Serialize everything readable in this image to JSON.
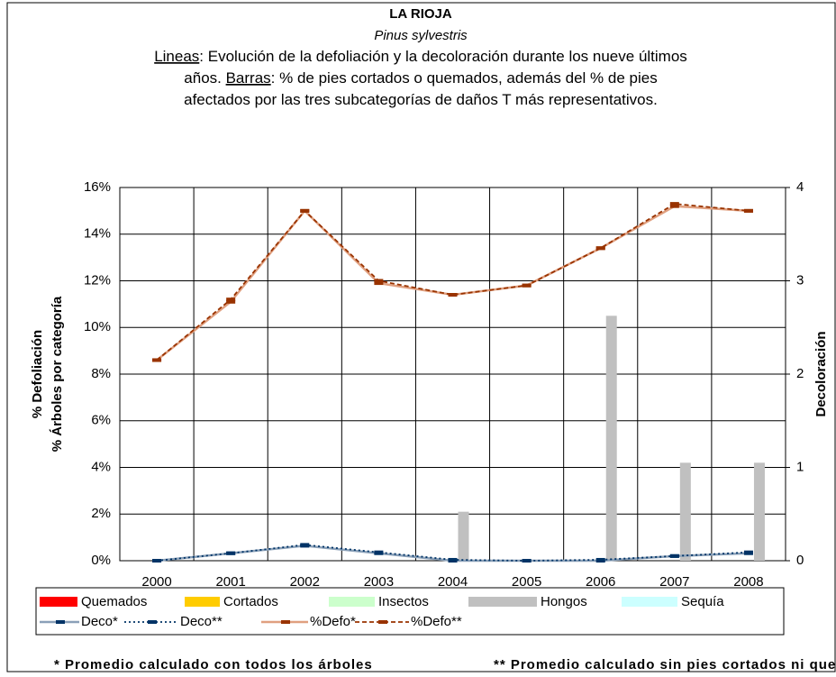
{
  "chart_data": {
    "type": "bar_line",
    "title": "LA RIOJA",
    "subtitle_italic": "Pinus sylvestris",
    "description": [
      [
        {
          "text": "Lineas",
          "underline": true
        },
        {
          "text": ": Evolución de la defoliación y la decoloración durante los nueve últimos"
        }
      ],
      [
        {
          "text": "años. "
        },
        {
          "text": "Barras",
          "underline": true
        },
        {
          "text": ": % de pies cortados o quemados, además del % de pies"
        }
      ],
      [
        {
          "text": "afectados por las tres subcategorías de daños T más representativos."
        }
      ]
    ],
    "ylabel": [
      "% Defoliación",
      "% Árboles por categoría"
    ],
    "y2label": "Decoloración",
    "categories": [
      "2000",
      "2001",
      "2002",
      "2003",
      "2004",
      "2005",
      "2006",
      "2007",
      "2008"
    ],
    "ylim": [
      0,
      16
    ],
    "yticks": [
      {
        "value": 0,
        "label": "0%"
      },
      {
        "value": 2,
        "label": "2%"
      },
      {
        "value": 4,
        "label": "4%"
      },
      {
        "value": 6,
        "label": "6%"
      },
      {
        "value": 8,
        "label": "8%"
      },
      {
        "value": 10,
        "label": "10%"
      },
      {
        "value": 12,
        "label": "12%"
      },
      {
        "value": 14,
        "label": "14%"
      },
      {
        "value": 16,
        "label": "16%"
      }
    ],
    "y2lim": [
      0,
      4
    ],
    "y2ticks": [
      0,
      1,
      2,
      3,
      4
    ],
    "grid": true,
    "bar_series": [
      {
        "name": "Quemados",
        "color": "#ff0000",
        "values": [
          0,
          0,
          0,
          0,
          0,
          0,
          0,
          0,
          0
        ]
      },
      {
        "name": "Cortados",
        "color": "#ffcc00",
        "values": [
          0,
          0,
          0,
          0,
          0,
          0,
          0,
          0,
          0
        ]
      },
      {
        "name": "Insectos",
        "color": "#ccffcc",
        "values": [
          0,
          0,
          0,
          0,
          0,
          0,
          0,
          0,
          0
        ]
      },
      {
        "name": "Hongos",
        "color": "#c0c0c0",
        "values": [
          0,
          0,
          0,
          0,
          2.1,
          0,
          10.5,
          4.2,
          4.2
        ]
      },
      {
        "name": "Sequía",
        "color": "#ccffff",
        "values": [
          0,
          0,
          0,
          0,
          0,
          0,
          0,
          0,
          0
        ]
      }
    ],
    "line_series": [
      {
        "name": "Deco*",
        "color": "#8aa0b8",
        "marker_color": "#003366",
        "dash": "solid",
        "axis": "y2",
        "values": [
          0,
          0.08,
          0.16,
          0.08,
          0,
          0,
          0,
          0.05,
          0.08
        ]
      },
      {
        "name": "Deco**",
        "color": "#003366",
        "marker_color": "#003366",
        "dash": "dotted",
        "axis": "y2",
        "values": [
          0,
          0.08,
          0.17,
          0.09,
          0.01,
          0,
          0.01,
          0.05,
          0.09
        ]
      },
      {
        "name": "%Defo*",
        "color": "#e0a080",
        "marker_color": "#993300",
        "dash": "solid",
        "axis": "y",
        "values": [
          8.6,
          11.1,
          15.0,
          11.9,
          11.4,
          11.8,
          13.4,
          15.2,
          15.0
        ]
      },
      {
        "name": "%Defo**",
        "color": "#993300",
        "marker_color": "#993300",
        "dash": "dashed",
        "axis": "y",
        "values": [
          8.6,
          11.2,
          15.0,
          12.0,
          11.4,
          11.8,
          13.4,
          15.3,
          15.0
        ]
      }
    ],
    "footnotes": [
      "* Promedio calculado con todos los árboles",
      "** Promedio calculado sin pies cortados ni quemados"
    ]
  }
}
